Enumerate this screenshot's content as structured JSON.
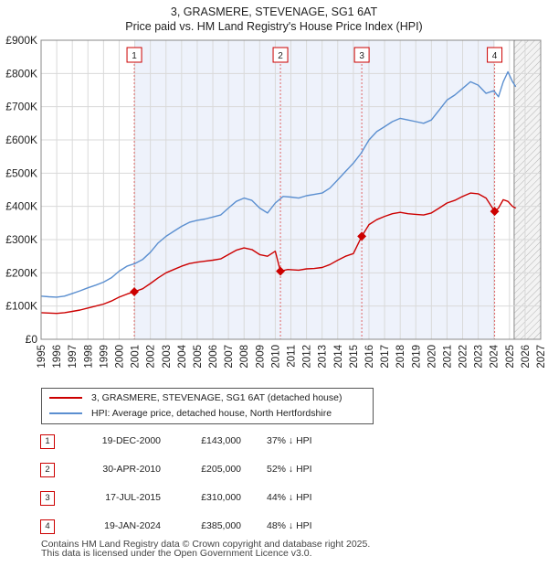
{
  "title_line1": "3, GRASMERE, STEVENAGE, SG1 6AT",
  "title_line2": "Price paid vs. HM Land Registry's House Price Index (HPI)",
  "legend": {
    "property_label": "3, GRASMERE, STEVENAGE, SG1 6AT (detached house)",
    "hpi_label": "HPI: Average price, detached house, North Hertfordshire"
  },
  "transactions": [
    {
      "num": "1",
      "date": "19-DEC-2000",
      "price": "£143,000",
      "diff": "37% ↓ HPI"
    },
    {
      "num": "2",
      "date": "30-APR-2010",
      "price": "£205,000",
      "diff": "52% ↓ HPI"
    },
    {
      "num": "3",
      "date": "17-JUL-2015",
      "price": "£310,000",
      "diff": "44% ↓ HPI"
    },
    {
      "num": "4",
      "date": "19-JAN-2024",
      "price": "£385,000",
      "diff": "48% ↓ HPI"
    }
  ],
  "footer": {
    "line1": "Contains HM Land Registry data © Crown copyright and database right 2025.",
    "line2": "This data is licensed under the Open Government Licence v3.0."
  },
  "colors": {
    "property_line": "#cc0000",
    "hpi_line": "#5b8fd0",
    "band_fill": "#eef2fb",
    "grid": "#d9d9d9"
  },
  "chart_data": {
    "type": "line",
    "xlim": [
      1995,
      2027
    ],
    "ylim": [
      0,
      900000
    ],
    "x_ticks": [
      "1995",
      "1996",
      "1997",
      "1998",
      "1999",
      "2000",
      "2001",
      "2002",
      "2003",
      "2004",
      "2005",
      "2006",
      "2007",
      "2008",
      "2009",
      "2010",
      "2011",
      "2012",
      "2013",
      "2014",
      "2015",
      "2016",
      "2017",
      "2018",
      "2019",
      "2020",
      "2021",
      "2022",
      "2023",
      "2024",
      "2025",
      "2026",
      "2027"
    ],
    "y_ticks": [
      {
        "value": 0,
        "label": "£0"
      },
      {
        "value": 100000,
        "label": "£100K"
      },
      {
        "value": 200000,
        "label": "£200K"
      },
      {
        "value": 300000,
        "label": "£300K"
      },
      {
        "value": 400000,
        "label": "£400K"
      },
      {
        "value": 500000,
        "label": "£500K"
      },
      {
        "value": 600000,
        "label": "£600K"
      },
      {
        "value": 700000,
        "label": "£700K"
      },
      {
        "value": 800000,
        "label": "£800K"
      },
      {
        "value": 900000,
        "label": "£900K"
      }
    ],
    "future_start": 2025.3,
    "shaded_band": [
      2000.97,
      2024.05
    ],
    "series": [
      {
        "name": "HPI: Average price, detached house, North Hertfordshire",
        "color": "#5b8fd0",
        "points": [
          [
            1995.0,
            130000
          ],
          [
            1995.5,
            128000
          ],
          [
            1996.0,
            127000
          ],
          [
            1996.5,
            130000
          ],
          [
            1997.0,
            138000
          ],
          [
            1997.5,
            146000
          ],
          [
            1998.0,
            155000
          ],
          [
            1998.5,
            163000
          ],
          [
            1999.0,
            172000
          ],
          [
            1999.5,
            185000
          ],
          [
            2000.0,
            205000
          ],
          [
            2000.5,
            220000
          ],
          [
            2001.0,
            228000
          ],
          [
            2001.5,
            240000
          ],
          [
            2002.0,
            262000
          ],
          [
            2002.5,
            290000
          ],
          [
            2003.0,
            310000
          ],
          [
            2003.5,
            325000
          ],
          [
            2004.0,
            340000
          ],
          [
            2004.5,
            352000
          ],
          [
            2005.0,
            358000
          ],
          [
            2005.5,
            362000
          ],
          [
            2006.0,
            368000
          ],
          [
            2006.5,
            374000
          ],
          [
            2007.0,
            395000
          ],
          [
            2007.5,
            415000
          ],
          [
            2008.0,
            425000
          ],
          [
            2008.5,
            418000
          ],
          [
            2009.0,
            395000
          ],
          [
            2009.5,
            380000
          ],
          [
            2010.0,
            410000
          ],
          [
            2010.5,
            430000
          ],
          [
            2011.0,
            428000
          ],
          [
            2011.5,
            425000
          ],
          [
            2012.0,
            432000
          ],
          [
            2012.5,
            436000
          ],
          [
            2013.0,
            440000
          ],
          [
            2013.5,
            455000
          ],
          [
            2014.0,
            480000
          ],
          [
            2014.5,
            505000
          ],
          [
            2015.0,
            530000
          ],
          [
            2015.5,
            560000
          ],
          [
            2016.0,
            600000
          ],
          [
            2016.5,
            625000
          ],
          [
            2017.0,
            640000
          ],
          [
            2017.5,
            655000
          ],
          [
            2018.0,
            665000
          ],
          [
            2018.5,
            660000
          ],
          [
            2019.0,
            655000
          ],
          [
            2019.5,
            650000
          ],
          [
            2020.0,
            660000
          ],
          [
            2020.5,
            690000
          ],
          [
            2021.0,
            720000
          ],
          [
            2021.5,
            735000
          ],
          [
            2022.0,
            755000
          ],
          [
            2022.5,
            775000
          ],
          [
            2023.0,
            765000
          ],
          [
            2023.5,
            740000
          ],
          [
            2024.0,
            748000
          ],
          [
            2024.3,
            730000
          ],
          [
            2024.6,
            775000
          ],
          [
            2024.9,
            805000
          ],
          [
            2025.2,
            775000
          ],
          [
            2025.4,
            760000
          ]
        ]
      },
      {
        "name": "3, GRASMERE, STEVENAGE, SG1 6AT (detached house)",
        "color": "#cc0000",
        "points": [
          [
            1995.0,
            80000
          ],
          [
            1995.5,
            79000
          ],
          [
            1996.0,
            78000
          ],
          [
            1996.5,
            80000
          ],
          [
            1997.0,
            84000
          ],
          [
            1997.5,
            88000
          ],
          [
            1998.0,
            94000
          ],
          [
            1998.5,
            100000
          ],
          [
            1999.0,
            106000
          ],
          [
            1999.5,
            115000
          ],
          [
            2000.0,
            127000
          ],
          [
            2000.5,
            136000
          ],
          [
            2000.97,
            143000
          ],
          [
            2001.5,
            152000
          ],
          [
            2002.0,
            168000
          ],
          [
            2002.5,
            185000
          ],
          [
            2003.0,
            200000
          ],
          [
            2003.5,
            210000
          ],
          [
            2004.0,
            220000
          ],
          [
            2004.5,
            228000
          ],
          [
            2005.0,
            232000
          ],
          [
            2005.5,
            235000
          ],
          [
            2006.0,
            238000
          ],
          [
            2006.5,
            242000
          ],
          [
            2007.0,
            255000
          ],
          [
            2007.5,
            268000
          ],
          [
            2008.0,
            275000
          ],
          [
            2008.5,
            270000
          ],
          [
            2009.0,
            255000
          ],
          [
            2009.5,
            250000
          ],
          [
            2010.0,
            265000
          ],
          [
            2010.33,
            205000
          ],
          [
            2010.8,
            210000
          ],
          [
            2011.5,
            208000
          ],
          [
            2012.0,
            212000
          ],
          [
            2012.5,
            213000
          ],
          [
            2013.0,
            216000
          ],
          [
            2013.5,
            225000
          ],
          [
            2014.0,
            238000
          ],
          [
            2014.5,
            250000
          ],
          [
            2015.0,
            258000
          ],
          [
            2015.54,
            310000
          ],
          [
            2016.0,
            345000
          ],
          [
            2016.5,
            360000
          ],
          [
            2017.0,
            370000
          ],
          [
            2017.5,
            378000
          ],
          [
            2018.0,
            382000
          ],
          [
            2018.5,
            378000
          ],
          [
            2019.0,
            376000
          ],
          [
            2019.5,
            374000
          ],
          [
            2020.0,
            380000
          ],
          [
            2020.5,
            395000
          ],
          [
            2021.0,
            410000
          ],
          [
            2021.5,
            418000
          ],
          [
            2022.0,
            430000
          ],
          [
            2022.5,
            440000
          ],
          [
            2023.0,
            438000
          ],
          [
            2023.5,
            425000
          ],
          [
            2024.05,
            385000
          ],
          [
            2024.3,
            395000
          ],
          [
            2024.6,
            420000
          ],
          [
            2024.9,
            415000
          ],
          [
            2025.2,
            400000
          ],
          [
            2025.4,
            395000
          ]
        ]
      }
    ],
    "sales": [
      {
        "num": "1",
        "x": 2000.97,
        "value": 143000
      },
      {
        "num": "2",
        "x": 2010.33,
        "value": 205000
      },
      {
        "num": "3",
        "x": 2015.54,
        "value": 310000
      },
      {
        "num": "4",
        "x": 2024.05,
        "value": 385000
      }
    ]
  }
}
